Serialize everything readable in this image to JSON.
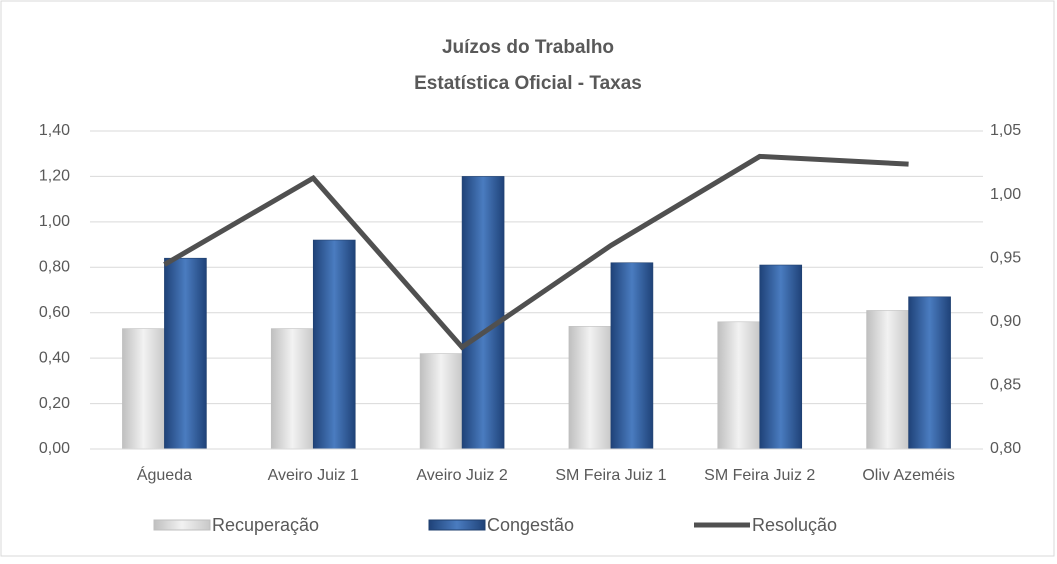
{
  "chart_data": {
    "type": "bar-line",
    "title": [
      "Juízos do Trabalho",
      "Estatística Oficial - Taxas"
    ],
    "categories": [
      "Águeda",
      "Aveiro Juiz 1",
      "Aveiro Juiz 2",
      "SM Feira Juiz 1",
      "SM Feira Juiz 2",
      "Oliv Azeméis"
    ],
    "series": [
      {
        "name": "Recuperação",
        "color": "#e3e3e3",
        "type": "bar",
        "values": [
          0.53,
          0.53,
          0.42,
          0.54,
          0.56,
          0.61
        ]
      },
      {
        "name": "Congestão",
        "color": "#2f5f9e",
        "type": "bar",
        "values": [
          0.84,
          0.92,
          1.2,
          0.82,
          0.81,
          0.67
        ]
      },
      {
        "name": "Resolução",
        "color": "#505050",
        "type": "line",
        "axis": "y2",
        "values": [
          0.945,
          1.013,
          0.88,
          0.96,
          1.03,
          1.024
        ]
      }
    ],
    "ylim": [
      0,
      1.4
    ],
    "yticks": [
      {
        "value": 0,
        "label": "0,00"
      },
      {
        "value": 0.2,
        "label": "0,20"
      },
      {
        "value": 0.4,
        "label": "0,40"
      },
      {
        "value": 0.6,
        "label": "0,60"
      },
      {
        "value": 0.8,
        "label": "0,80"
      },
      {
        "value": 1.0,
        "label": "1,00"
      },
      {
        "value": 1.2,
        "label": "1,20"
      },
      {
        "value": 1.4,
        "label": "1,40"
      }
    ],
    "y2lim": [
      0.8,
      1.05
    ],
    "y2ticks": [
      {
        "value": 0.8,
        "label": "0,80"
      },
      {
        "value": 0.85,
        "label": "0,85"
      },
      {
        "value": 0.9,
        "label": "0,90"
      },
      {
        "value": 0.95,
        "label": "0,95"
      },
      {
        "value": 1.0,
        "label": "1,00"
      },
      {
        "value": 1.05,
        "label": "1,05"
      }
    ],
    "grid": true,
    "legend": "bottom"
  }
}
